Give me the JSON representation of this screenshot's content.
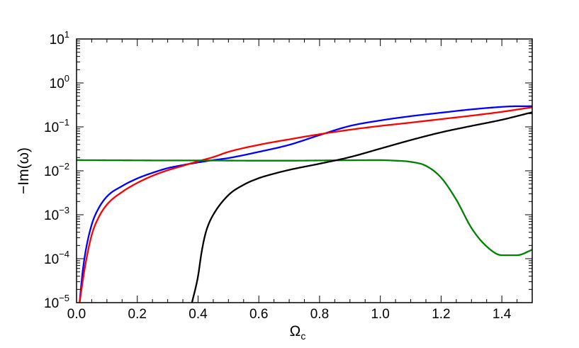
{
  "chart_data": {
    "type": "line",
    "title": "",
    "xlabel_main": "Ω",
    "xlabel_sub": "c",
    "ylabel": "−Im(ω)",
    "xlim": [
      0.0,
      1.5
    ],
    "ylim": [
      1e-05,
      10
    ],
    "yscale": "log",
    "grid": false,
    "legend": "none",
    "x_ticks": [
      {
        "value": 0.0,
        "label": "0.0"
      },
      {
        "value": 0.2,
        "label": "0.2"
      },
      {
        "value": 0.4,
        "label": "0.4"
      },
      {
        "value": 0.6,
        "label": "0.6"
      },
      {
        "value": 0.8,
        "label": "0.8"
      },
      {
        "value": 1.0,
        "label": "1.0"
      },
      {
        "value": 1.2,
        "label": "1.2"
      },
      {
        "value": 1.4,
        "label": "1.4"
      }
    ],
    "y_ticks": [
      {
        "value": 1e-05,
        "base": "10",
        "exp": "−5"
      },
      {
        "value": 0.0001,
        "base": "10",
        "exp": "−4"
      },
      {
        "value": 0.001,
        "base": "10",
        "exp": "−3"
      },
      {
        "value": 0.01,
        "base": "10",
        "exp": "−2"
      },
      {
        "value": 0.1,
        "base": "10",
        "exp": "−1"
      },
      {
        "value": 1,
        "base": "10",
        "exp": "0"
      },
      {
        "value": 10,
        "base": "10",
        "exp": "1"
      }
    ],
    "series": [
      {
        "color": "#0000ff",
        "x": [
          0.01,
          0.02,
          0.03,
          0.05,
          0.07,
          0.1,
          0.15,
          0.2,
          0.25,
          0.3,
          0.35,
          0.4,
          0.45,
          0.5,
          0.6,
          0.7,
          0.8,
          0.9,
          1.0,
          1.1,
          1.2,
          1.3,
          1.4,
          1.45,
          1.5
        ],
        "y": [
          1e-05,
          5e-05,
          0.00015,
          0.0006,
          0.0013,
          0.0026,
          0.0045,
          0.0067,
          0.009,
          0.0115,
          0.0135,
          0.0155,
          0.0175,
          0.0195,
          0.027,
          0.039,
          0.065,
          0.105,
          0.14,
          0.175,
          0.21,
          0.25,
          0.285,
          0.295,
          0.295
        ]
      },
      {
        "color": "#ff0000",
        "x": [
          0.01,
          0.02,
          0.03,
          0.05,
          0.07,
          0.1,
          0.15,
          0.2,
          0.25,
          0.3,
          0.35,
          0.4,
          0.45,
          0.5,
          0.6,
          0.7,
          0.8,
          0.9,
          1.0,
          1.1,
          1.2,
          1.3,
          1.4,
          1.5
        ],
        "y": [
          1e-05,
          3e-05,
          8e-05,
          0.00035,
          0.0008,
          0.0017,
          0.0033,
          0.0053,
          0.0077,
          0.0103,
          0.013,
          0.0165,
          0.0205,
          0.027,
          0.039,
          0.052,
          0.068,
          0.086,
          0.105,
          0.125,
          0.15,
          0.18,
          0.22,
          0.28
        ]
      },
      {
        "color": "#008000",
        "x": [
          0.0,
          0.1,
          0.2,
          0.3,
          0.4,
          0.5,
          0.6,
          0.7,
          0.8,
          0.9,
          1.0,
          1.05,
          1.1,
          1.15,
          1.2,
          1.25,
          1.3,
          1.35,
          1.4,
          1.45,
          1.5
        ],
        "y": [
          0.0175,
          0.0174,
          0.0173,
          0.0172,
          0.0172,
          0.0171,
          0.017,
          0.017,
          0.0172,
          0.0174,
          0.0175,
          0.017,
          0.016,
          0.013,
          0.007,
          0.0022,
          0.0005,
          0.00019,
          0.00012,
          0.00012,
          0.00016
        ]
      },
      {
        "color": "#000000",
        "x": [
          0.38,
          0.4,
          0.41,
          0.42,
          0.43,
          0.45,
          0.5,
          0.55,
          0.6,
          0.65,
          0.7,
          0.8,
          0.9,
          1.0,
          1.1,
          1.2,
          1.3,
          1.4,
          1.5
        ],
        "y": [
          1e-05,
          4e-05,
          0.00012,
          0.00028,
          0.0005,
          0.001,
          0.0028,
          0.0048,
          0.0068,
          0.0086,
          0.0105,
          0.0145,
          0.0205,
          0.032,
          0.05,
          0.075,
          0.105,
          0.145,
          0.215
        ]
      }
    ]
  }
}
